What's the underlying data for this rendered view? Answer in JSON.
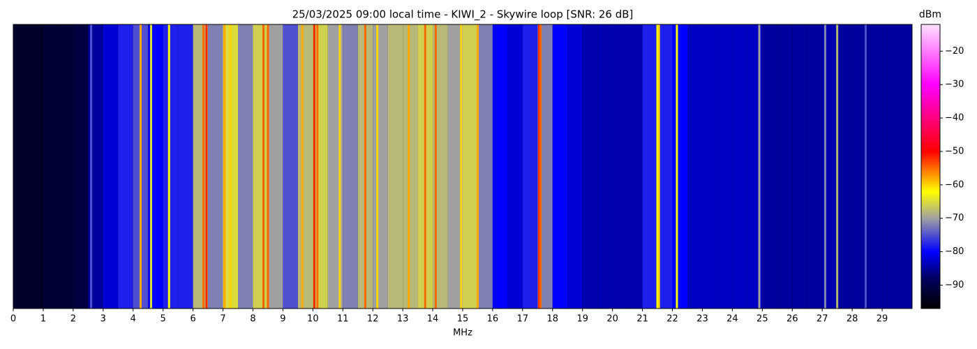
{
  "chart_data": {
    "type": "heatmap",
    "title": "25/03/2025 09:00 local time - KIWI_2 - Skywire loop [SNR: 26 dB]",
    "x_label": "MHz",
    "colorbar_label": "dBm",
    "xlim": [
      0,
      30
    ],
    "xticks": [
      0,
      1,
      2,
      3,
      4,
      5,
      6,
      7,
      8,
      9,
      10,
      11,
      12,
      13,
      14,
      15,
      16,
      17,
      18,
      19,
      20,
      21,
      22,
      23,
      24,
      25,
      26,
      27,
      28,
      29
    ],
    "clim": [
      -97,
      -12
    ],
    "cticks": [
      {
        "value": -90,
        "label": "−90"
      },
      {
        "value": -80,
        "label": "−80"
      },
      {
        "value": -70,
        "label": "−70"
      },
      {
        "value": -60,
        "label": "−60"
      },
      {
        "value": -50,
        "label": "−50"
      },
      {
        "value": -40,
        "label": "−40"
      },
      {
        "value": -30,
        "label": "−30"
      },
      {
        "value": -20,
        "label": "−20"
      }
    ],
    "colorscale": [
      [
        -97,
        "#000000"
      ],
      [
        -88,
        "#000060"
      ],
      [
        -80,
        "#0000ff"
      ],
      [
        -70,
        "#a0a0a0"
      ],
      [
        -62,
        "#ffff00"
      ],
      [
        -50,
        "#ff0000"
      ],
      [
        -30,
        "#ff00ff"
      ],
      [
        -12,
        "#ffe0ff"
      ]
    ],
    "series": [
      {
        "name": "band level",
        "x": [
          0.25,
          0.75,
          1.25,
          1.75,
          2.25,
          2.75,
          3.25,
          3.75,
          4.25,
          4.75,
          5.25,
          5.75,
          6.25,
          6.75,
          7.25,
          7.75,
          8.25,
          8.75,
          9.25,
          9.75,
          10.25,
          10.75,
          11.25,
          11.75,
          12.25,
          12.75,
          13.25,
          13.75,
          14.25,
          14.75,
          15.25,
          15.75,
          16.25,
          16.75,
          17.25,
          17.75,
          18.25,
          18.75,
          19.25,
          19.75,
          20.25,
          20.75,
          21.25,
          21.75,
          22.25,
          22.75,
          23.25,
          23.75,
          24.25,
          24.75,
          25.25,
          25.75,
          26.25,
          26.75,
          27.25,
          27.75,
          28.25,
          28.75,
          29.25,
          29.75
        ],
        "values": [
          -93,
          -93,
          -92,
          -92,
          -91,
          -85,
          -82,
          -78,
          -75,
          -80,
          -78,
          -78,
          -68,
          -72,
          -65,
          -72,
          -66,
          -70,
          -75,
          -68,
          -66,
          -70,
          -72,
          -68,
          -70,
          -68,
          -68,
          -66,
          -68,
          -70,
          -66,
          -72,
          -80,
          -82,
          -78,
          -72,
          -80,
          -82,
          -84,
          -84,
          -84,
          -84,
          -78,
          -78,
          -80,
          -83,
          -83,
          -83,
          -83,
          -83,
          -85,
          -85,
          -85,
          -85,
          -84,
          -85,
          -85,
          -85,
          -85,
          -85
        ]
      },
      {
        "name": "carriers",
        "x": [
          2.6,
          4.25,
          4.6,
          5.2,
          6.35,
          6.45,
          7.05,
          7.25,
          8.35,
          8.5,
          9.65,
          10.05,
          10.15,
          10.9,
          11.75,
          12.15,
          13.2,
          13.75,
          14.1,
          14.95,
          15.5,
          17.55,
          17.6,
          21.5,
          21.55,
          22.15,
          24.9,
          27.1,
          27.5,
          28.45
        ],
        "values": [
          -75,
          -58,
          -65,
          -62,
          -55,
          -52,
          -58,
          -60,
          -55,
          -55,
          -58,
          -52,
          -55,
          -60,
          -55,
          -60,
          -58,
          -55,
          -55,
          -60,
          -58,
          -52,
          -55,
          -62,
          -60,
          -62,
          -70,
          -72,
          -68,
          -75
        ]
      }
    ]
  }
}
